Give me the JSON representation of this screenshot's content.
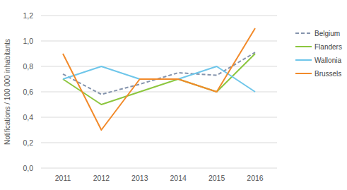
{
  "chart_data": {
    "type": "line",
    "y_label": "Notifications / 100 000 inhabitants",
    "categories": [
      "2011",
      "2012",
      "2013",
      "2014",
      "2015",
      "2016"
    ],
    "series": [
      {
        "name": "Belgium",
        "color": "#8594ad",
        "line_style": "dashed",
        "values": [
          0.74,
          0.58,
          0.66,
          0.75,
          0.73,
          0.91
        ]
      },
      {
        "name": "Flanders",
        "color": "#8cc63e",
        "line_style": "solid",
        "values": [
          0.7,
          0.5,
          0.6,
          0.7,
          0.6,
          0.9
        ]
      },
      {
        "name": "Wallonia",
        "color": "#6ec6ea",
        "line_style": "solid",
        "values": [
          0.7,
          0.8,
          0.7,
          0.7,
          0.8,
          0.6
        ]
      },
      {
        "name": "Brussels",
        "color": "#f28a2a",
        "line_style": "solid",
        "values": [
          0.9,
          0.3,
          0.7,
          0.7,
          0.6,
          1.1
        ]
      }
    ],
    "ylim": [
      0,
      1.2
    ],
    "yticks": [
      {
        "value": 0,
        "label": "0,0"
      },
      {
        "value": 0.2,
        "label": "0,2"
      },
      {
        "value": 0.4,
        "label": "0,4"
      },
      {
        "value": 0.6,
        "label": "0,6"
      },
      {
        "value": 0.8,
        "label": "0,8"
      },
      {
        "value": 1.0,
        "label": "1,0"
      },
      {
        "value": 1.2,
        "label": "1,2"
      }
    ],
    "grid": true,
    "legend": "right"
  }
}
